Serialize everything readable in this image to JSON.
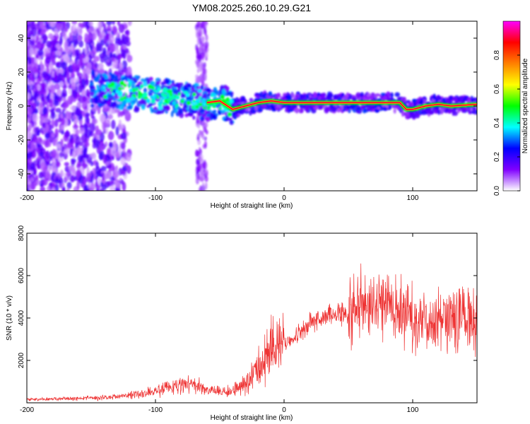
{
  "chart_data": [
    {
      "type": "heatmap",
      "title": "YM08.2025.260.10.29.G21",
      "xlabel": "Height of straight line (km)",
      "ylabel": "Frequency (Hz)",
      "xlim": [
        -200,
        150
      ],
      "ylim": [
        -50,
        50
      ],
      "xticks": [
        -200,
        -100,
        0,
        100
      ],
      "yticks": [
        -40,
        -20,
        0,
        20,
        40
      ],
      "colorbar": {
        "label": "Normalized spectral amplitude",
        "range": [
          0,
          1
        ],
        "ticks": [
          "0.0",
          "0.2",
          "0.4",
          "0.6",
          "0.8"
        ],
        "tick_values": [
          0,
          0.2,
          0.4,
          0.6,
          0.8
        ],
        "colors": [
          "#ffffff",
          "#8000ff",
          "#0000ff",
          "#00ffff",
          "#00ff00",
          "#ffff00",
          "#ff8000",
          "#ff0000",
          "#ff00ff"
        ]
      },
      "ridge": {
        "x": [
          -140,
          -120,
          -100,
          -80,
          -60,
          -50,
          -40,
          -30,
          -20,
          -10,
          0,
          20,
          40,
          60,
          80,
          90,
          95,
          100,
          110,
          120,
          130,
          150
        ],
        "y": [
          10,
          8,
          6,
          4,
          2,
          3,
          -2,
          0,
          2,
          3,
          2,
          2,
          2,
          2,
          2,
          2,
          -2,
          -2,
          0,
          1,
          0,
          1
        ]
      }
    },
    {
      "type": "line",
      "xlabel": "Height of straight line (km)",
      "ylabel": "SNR (10 * v/v)",
      "xlim": [
        -200,
        150
      ],
      "ylim": [
        0,
        8000
      ],
      "xticks": [
        -200,
        -100,
        0,
        100
      ],
      "yticks": [
        2000,
        4000,
        6000,
        8000
      ],
      "color": "#ee3333",
      "series": [
        {
          "name": "SNR",
          "x": [
            -200,
            -180,
            -160,
            -140,
            -120,
            -100,
            -90,
            -80,
            -70,
            -60,
            -50,
            -40,
            -30,
            -25,
            -20,
            -15,
            -10,
            0,
            10,
            20,
            30,
            40,
            50,
            60,
            70,
            80,
            90,
            100,
            110,
            120,
            130,
            140,
            150
          ],
          "y": [
            150,
            170,
            200,
            250,
            350,
            550,
            700,
            800,
            900,
            600,
            500,
            550,
            900,
            1300,
            1800,
            2200,
            2500,
            2800,
            3200,
            3700,
            4100,
            4250,
            4200,
            4500,
            4600,
            5000,
            4300,
            4000,
            3800,
            4100,
            4000,
            4100,
            4000
          ]
        }
      ]
    }
  ]
}
